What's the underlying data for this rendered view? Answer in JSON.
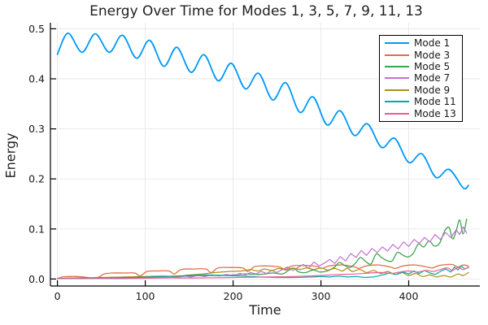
{
  "title": "Energy Over Time for Modes 1, 3, 5, 7, 9, 11, 13",
  "chart_data": {
    "type": "line",
    "title": "Energy Over Time for Modes 1, 3, 5, 7, 9, 11, 13",
    "xlabel": "Time",
    "ylabel": "Energy",
    "xlim": [
      -8,
      481
    ],
    "ylim": [
      -0.014,
      0.512
    ],
    "xticks": [
      0,
      100,
      200,
      300,
      400
    ],
    "xticklabels": [
      "0",
      "100",
      "200",
      "300",
      "400"
    ],
    "yticks": [
      0.0,
      0.1,
      0.2,
      0.3,
      0.4,
      0.5
    ],
    "yticklabels": [
      "0.0",
      "0.1",
      "0.2",
      "0.3",
      "0.4",
      "0.5"
    ],
    "grid": true,
    "grid_color": "#e7e7e7",
    "spine_color": "#000000",
    "text_color": "#1a1a1a",
    "legend_position": "top-right",
    "series": [
      {
        "name": "Mode 1",
        "color": "#009AFA",
        "width": 1.8,
        "smooth": true,
        "points": [
          [
            0,
            0.449
          ],
          [
            12,
            0.491
          ],
          [
            28,
            0.453
          ],
          [
            43,
            0.49
          ],
          [
            59,
            0.453
          ],
          [
            74,
            0.487
          ],
          [
            90,
            0.441
          ],
          [
            105,
            0.477
          ],
          [
            121,
            0.425
          ],
          [
            136,
            0.463
          ],
          [
            152,
            0.413
          ],
          [
            167,
            0.448
          ],
          [
            183,
            0.396
          ],
          [
            198,
            0.431
          ],
          [
            214,
            0.38
          ],
          [
            229,
            0.411
          ],
          [
            245,
            0.358
          ],
          [
            260,
            0.392
          ],
          [
            276,
            0.333
          ],
          [
            291,
            0.364
          ],
          [
            307,
            0.308
          ],
          [
            322,
            0.336
          ],
          [
            338,
            0.287
          ],
          [
            353,
            0.31
          ],
          [
            369,
            0.263
          ],
          [
            384,
            0.281
          ],
          [
            400,
            0.233
          ],
          [
            415,
            0.25
          ],
          [
            431,
            0.203
          ],
          [
            446,
            0.219
          ],
          [
            462,
            0.182
          ],
          [
            468,
            0.187
          ]
        ]
      },
      {
        "name": "Mode 3",
        "color": "#E26E47",
        "width": 1.3,
        "smooth": true,
        "points": [
          [
            0,
            0.001
          ],
          [
            6,
            0.004
          ],
          [
            14,
            0.005
          ],
          [
            22,
            0.005
          ],
          [
            30,
            0.004
          ],
          [
            38,
            0.002
          ],
          [
            46,
            0.003
          ],
          [
            53,
            0.01
          ],
          [
            62,
            0.012
          ],
          [
            76,
            0.012
          ],
          [
            88,
            0.012
          ],
          [
            94,
            0.006
          ],
          [
            102,
            0.015
          ],
          [
            114,
            0.016
          ],
          [
            127,
            0.016
          ],
          [
            133,
            0.01
          ],
          [
            141,
            0.019
          ],
          [
            156,
            0.02
          ],
          [
            169,
            0.02
          ],
          [
            175,
            0.013
          ],
          [
            183,
            0.022
          ],
          [
            197,
            0.023
          ],
          [
            211,
            0.022
          ],
          [
            217,
            0.015
          ],
          [
            225,
            0.025
          ],
          [
            239,
            0.026
          ],
          [
            253,
            0.024
          ],
          [
            259,
            0.019
          ],
          [
            267,
            0.026
          ],
          [
            281,
            0.027
          ],
          [
            295,
            0.025
          ],
          [
            301,
            0.021
          ],
          [
            309,
            0.026
          ],
          [
            323,
            0.028
          ],
          [
            337,
            0.025
          ],
          [
            343,
            0.021
          ],
          [
            351,
            0.026
          ],
          [
            365,
            0.028
          ],
          [
            379,
            0.024
          ],
          [
            385,
            0.021
          ],
          [
            393,
            0.026
          ],
          [
            407,
            0.028
          ],
          [
            421,
            0.024
          ],
          [
            427,
            0.022
          ],
          [
            435,
            0.027
          ],
          [
            449,
            0.029
          ],
          [
            456,
            0.024
          ],
          [
            462,
            0.028
          ],
          [
            468,
            0.026
          ]
        ]
      },
      {
        "name": "Mode 5",
        "color": "#3DA44E",
        "width": 1.3,
        "smooth": true,
        "points": [
          [
            0,
            0.001
          ],
          [
            25,
            0.002
          ],
          [
            50,
            0.002
          ],
          [
            75,
            0.003
          ],
          [
            100,
            0.004
          ],
          [
            125,
            0.004
          ],
          [
            150,
            0.006
          ],
          [
            175,
            0.007
          ],
          [
            200,
            0.008
          ],
          [
            215,
            0.01
          ],
          [
            230,
            0.009
          ],
          [
            245,
            0.012
          ],
          [
            256,
            0.01
          ],
          [
            263,
            0.017
          ],
          [
            269,
            0.021
          ],
          [
            275,
            0.014
          ],
          [
            283,
            0.013
          ],
          [
            291,
            0.018
          ],
          [
            299,
            0.014
          ],
          [
            307,
            0.016
          ],
          [
            315,
            0.023
          ],
          [
            321,
            0.033
          ],
          [
            327,
            0.027
          ],
          [
            333,
            0.023
          ],
          [
            339,
            0.031
          ],
          [
            345,
            0.043
          ],
          [
            351,
            0.035
          ],
          [
            357,
            0.03
          ],
          [
            363,
            0.05
          ],
          [
            369,
            0.043
          ],
          [
            375,
            0.037
          ],
          [
            381,
            0.036
          ],
          [
            387,
            0.053
          ],
          [
            393,
            0.048
          ],
          [
            399,
            0.044
          ],
          [
            405,
            0.051
          ],
          [
            411,
            0.07
          ],
          [
            417,
            0.064
          ],
          [
            423,
            0.076
          ],
          [
            429,
            0.066
          ],
          [
            435,
            0.071
          ],
          [
            441,
            0.096
          ],
          [
            446,
            0.103
          ],
          [
            450,
            0.08
          ],
          [
            454,
            0.096
          ],
          [
            458,
            0.118
          ],
          [
            462,
            0.09
          ],
          [
            466,
            0.12
          ]
        ]
      },
      {
        "name": "Mode 7",
        "color": "#C271D2",
        "width": 1.2,
        "smooth": false,
        "points": [
          [
            0,
            0.001
          ],
          [
            30,
            0.001
          ],
          [
            60,
            0.002
          ],
          [
            90,
            0.002
          ],
          [
            110,
            0.003
          ],
          [
            125,
            0.004
          ],
          [
            135,
            0.003
          ],
          [
            145,
            0.006
          ],
          [
            152,
            0.004
          ],
          [
            160,
            0.007
          ],
          [
            168,
            0.005
          ],
          [
            176,
            0.008
          ],
          [
            184,
            0.006
          ],
          [
            192,
            0.009
          ],
          [
            200,
            0.007
          ],
          [
            208,
            0.011
          ],
          [
            214,
            0.008
          ],
          [
            220,
            0.013
          ],
          [
            226,
            0.01
          ],
          [
            232,
            0.015
          ],
          [
            238,
            0.011
          ],
          [
            244,
            0.017
          ],
          [
            250,
            0.013
          ],
          [
            256,
            0.019
          ],
          [
            262,
            0.024
          ],
          [
            268,
            0.017
          ],
          [
            274,
            0.023
          ],
          [
            280,
            0.029
          ],
          [
            286,
            0.021
          ],
          [
            292,
            0.034
          ],
          [
            298,
            0.026
          ],
          [
            304,
            0.032
          ],
          [
            310,
            0.039
          ],
          [
            316,
            0.031
          ],
          [
            322,
            0.045
          ],
          [
            328,
            0.036
          ],
          [
            334,
            0.051
          ],
          [
            340,
            0.043
          ],
          [
            346,
            0.057
          ],
          [
            352,
            0.047
          ],
          [
            358,
            0.061
          ],
          [
            364,
            0.053
          ],
          [
            370,
            0.064
          ],
          [
            376,
            0.056
          ],
          [
            382,
            0.069
          ],
          [
            388,
            0.06
          ],
          [
            394,
            0.074
          ],
          [
            400,
            0.065
          ],
          [
            406,
            0.079
          ],
          [
            412,
            0.071
          ],
          [
            418,
            0.083
          ],
          [
            424,
            0.074
          ],
          [
            430,
            0.089
          ],
          [
            436,
            0.079
          ],
          [
            442,
            0.093
          ],
          [
            448,
            0.083
          ],
          [
            454,
            0.098
          ],
          [
            458,
            0.089
          ],
          [
            462,
            0.104
          ],
          [
            466,
            0.092
          ]
        ]
      },
      {
        "name": "Mode 9",
        "color": "#AC8E18",
        "width": 1.2,
        "smooth": true,
        "points": [
          [
            0,
            0.001
          ],
          [
            25,
            0.002
          ],
          [
            50,
            0.003
          ],
          [
            75,
            0.004
          ],
          [
            100,
            0.005
          ],
          [
            120,
            0.006
          ],
          [
            135,
            0.005
          ],
          [
            150,
            0.008
          ],
          [
            165,
            0.01
          ],
          [
            180,
            0.013
          ],
          [
            195,
            0.015
          ],
          [
            210,
            0.016
          ],
          [
            220,
            0.019
          ],
          [
            228,
            0.016
          ],
          [
            236,
            0.02
          ],
          [
            244,
            0.017
          ],
          [
            252,
            0.021
          ],
          [
            260,
            0.018
          ],
          [
            268,
            0.022
          ],
          [
            276,
            0.019
          ],
          [
            284,
            0.022
          ],
          [
            292,
            0.019
          ],
          [
            300,
            0.022
          ],
          [
            308,
            0.018
          ],
          [
            316,
            0.021
          ],
          [
            324,
            0.016
          ],
          [
            330,
            0.021
          ],
          [
            336,
            0.015
          ],
          [
            344,
            0.019
          ],
          [
            352,
            0.013
          ],
          [
            360,
            0.017
          ],
          [
            368,
            0.011
          ],
          [
            376,
            0.015
          ],
          [
            384,
            0.009
          ],
          [
            392,
            0.013
          ],
          [
            400,
            0.007
          ],
          [
            408,
            0.011
          ],
          [
            416,
            0.005
          ],
          [
            424,
            0.008
          ],
          [
            432,
            0.004
          ],
          [
            440,
            0.007
          ],
          [
            448,
            0.004
          ],
          [
            456,
            0.01
          ],
          [
            462,
            0.007
          ],
          [
            468,
            0.013
          ]
        ]
      },
      {
        "name": "Mode 11",
        "color": "#00AAAE",
        "width": 1.2,
        "smooth": false,
        "points": [
          [
            0,
            0.001
          ],
          [
            30,
            0.002
          ],
          [
            60,
            0.002
          ],
          [
            90,
            0.003
          ],
          [
            120,
            0.005
          ],
          [
            150,
            0.007
          ],
          [
            170,
            0.008
          ],
          [
            190,
            0.007
          ],
          [
            210,
            0.006
          ],
          [
            230,
            0.004
          ],
          [
            250,
            0.003
          ],
          [
            270,
            0.003
          ],
          [
            290,
            0.004
          ],
          [
            300,
            0.005
          ],
          [
            310,
            0.004
          ],
          [
            320,
            0.006
          ],
          [
            330,
            0.004
          ],
          [
            340,
            0.005
          ],
          [
            350,
            0.003
          ],
          [
            360,
            0.004
          ],
          [
            370,
            0.008
          ],
          [
            378,
            0.012
          ],
          [
            386,
            0.009
          ],
          [
            394,
            0.014
          ],
          [
            400,
            0.01
          ],
          [
            406,
            0.016
          ],
          [
            412,
            0.011
          ],
          [
            418,
            0.017
          ],
          [
            424,
            0.012
          ],
          [
            430,
            0.009
          ],
          [
            436,
            0.015
          ],
          [
            442,
            0.02
          ],
          [
            448,
            0.014
          ],
          [
            452,
            0.024
          ],
          [
            456,
            0.018
          ],
          [
            460,
            0.026
          ],
          [
            464,
            0.02
          ],
          [
            468,
            0.023
          ]
        ]
      },
      {
        "name": "Mode 13",
        "color": "#ED5E93",
        "width": 1.2,
        "smooth": true,
        "points": [
          [
            0,
            0.001
          ],
          [
            40,
            0.001
          ],
          [
            80,
            0.001
          ],
          [
            120,
            0.002
          ],
          [
            160,
            0.002
          ],
          [
            200,
            0.003
          ],
          [
            240,
            0.004
          ],
          [
            270,
            0.005
          ],
          [
            300,
            0.007
          ],
          [
            320,
            0.009
          ],
          [
            340,
            0.01
          ],
          [
            355,
            0.012
          ],
          [
            370,
            0.013
          ],
          [
            380,
            0.011
          ],
          [
            390,
            0.014
          ],
          [
            400,
            0.016
          ],
          [
            410,
            0.014
          ],
          [
            420,
            0.017
          ],
          [
            428,
            0.015
          ],
          [
            436,
            0.019
          ],
          [
            444,
            0.022
          ],
          [
            450,
            0.017
          ],
          [
            456,
            0.023
          ],
          [
            462,
            0.019
          ],
          [
            468,
            0.024
          ]
        ]
      }
    ]
  }
}
